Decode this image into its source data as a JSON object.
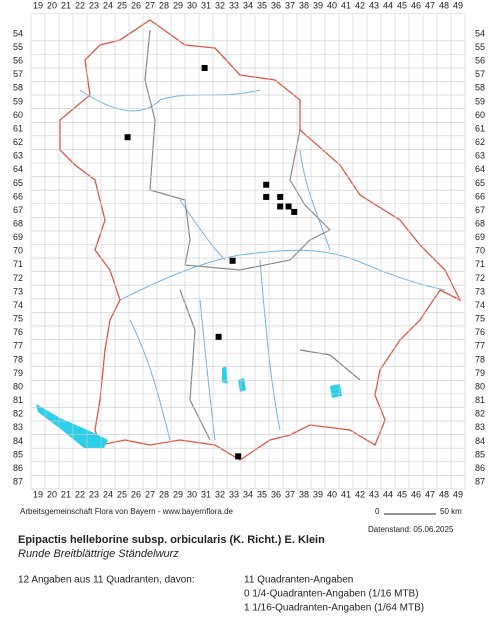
{
  "map": {
    "x_labels": [
      19,
      20,
      21,
      22,
      23,
      24,
      25,
      26,
      27,
      28,
      29,
      30,
      31,
      32,
      33,
      34,
      35,
      36,
      37,
      38,
      39,
      40,
      41,
      42,
      43,
      44,
      45,
      46,
      47,
      48,
      49
    ],
    "y_labels": [
      54,
      55,
      56,
      57,
      58,
      59,
      60,
      61,
      62,
      63,
      64,
      65,
      66,
      67,
      68,
      69,
      70,
      71,
      72,
      73,
      74,
      75,
      76,
      77,
      78,
      79,
      80,
      81,
      82,
      83,
      84,
      85,
      86,
      87
    ],
    "points": [
      {
        "x": 30.9,
        "y": 56.5
      },
      {
        "x": 25.4,
        "y": 61.6
      },
      {
        "x": 35.3,
        "y": 65.1
      },
      {
        "x": 35.3,
        "y": 66.0
      },
      {
        "x": 36.3,
        "y": 66.0
      },
      {
        "x": 36.3,
        "y": 66.7
      },
      {
        "x": 36.9,
        "y": 66.7
      },
      {
        "x": 37.3,
        "y": 67.1
      },
      {
        "x": 32.9,
        "y": 70.7
      },
      {
        "x": 31.9,
        "y": 76.3
      },
      {
        "x": 33.3,
        "y": 85.1
      }
    ]
  },
  "credit": "Arbeitsgemeinschaft Flora von Bayern - www.bayernflora.de",
  "scale_start": "0",
  "scale_end": "50 km",
  "date": "Datenstand: 05.06.2025",
  "title": "Epipactis helleborine subsp. orbicularis (K. Richt.) E. Klein",
  "subtitle": "Runde Breitblättrige Ständelwurz",
  "summary": "12 Angaben aus 11 Quadranten, davon:",
  "counts": [
    "11 Quadranten-Angaben",
    "0 1/4-Quadranten-Angaben (1/16 MTB)",
    "1 1/16-Quadranten-Angaben (1/64 MTB)"
  ]
}
